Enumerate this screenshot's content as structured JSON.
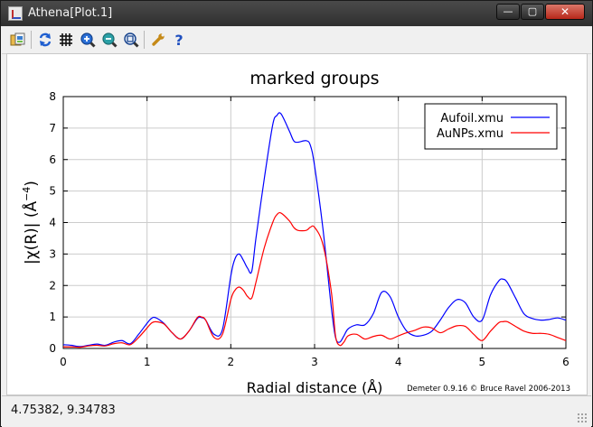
{
  "window": {
    "title": "Athena[Plot.1]",
    "controls": {
      "minimize": "—",
      "maximize": "▢",
      "close": "✕"
    }
  },
  "toolbar": {
    "buttons": [
      {
        "name": "save-image",
        "icon": "save-image-icon"
      },
      {
        "name": "replot",
        "icon": "refresh-icon"
      },
      {
        "name": "grid",
        "icon": "grid-icon"
      },
      {
        "name": "zoom-in",
        "icon": "zoom-in-icon"
      },
      {
        "name": "zoom-out",
        "icon": "zoom-out-icon"
      },
      {
        "name": "zoom-fit",
        "icon": "zoom-fit-icon"
      },
      {
        "name": "settings",
        "icon": "wrench-icon"
      },
      {
        "name": "help",
        "icon": "help-icon"
      }
    ]
  },
  "status": {
    "coordinates": "4.75382,  9.34783"
  },
  "chart_data": {
    "type": "line",
    "title": "marked groups",
    "xlabel": "Radial distance    (Å)",
    "ylabel": "|χ(R)|   (Å",
    "ylabel_sup": "−4",
    "ylabel_close": ")",
    "xlim": [
      0,
      6
    ],
    "ylim": [
      0,
      8
    ],
    "xticks": [
      "0",
      "1",
      "2",
      "3",
      "4",
      "5",
      "6"
    ],
    "yticks": [
      "0",
      "1",
      "2",
      "3",
      "4",
      "5",
      "6",
      "7",
      "8"
    ],
    "grid": true,
    "legend_position": "top-right",
    "credit": "Demeter 0.9.16 © Bruce Ravel 2006-2013",
    "series": [
      {
        "name": "Aufoil.xmu",
        "color": "#0000ff",
        "x": [
          0,
          0.1,
          0.2,
          0.3,
          0.4,
          0.5,
          0.6,
          0.7,
          0.8,
          0.9,
          1.0,
          1.05,
          1.1,
          1.2,
          1.3,
          1.4,
          1.5,
          1.6,
          1.65,
          1.7,
          1.8,
          1.9,
          2.0,
          2.05,
          2.1,
          2.15,
          2.2,
          2.25,
          2.3,
          2.4,
          2.5,
          2.55,
          2.6,
          2.7,
          2.75,
          2.8,
          2.9,
          2.95,
          3.0,
          3.1,
          3.2,
          3.25,
          3.3,
          3.35,
          3.4,
          3.5,
          3.6,
          3.7,
          3.8,
          3.9,
          4.0,
          4.1,
          4.2,
          4.3,
          4.4,
          4.5,
          4.6,
          4.7,
          4.8,
          4.9,
          5.0,
          5.1,
          5.2,
          5.25,
          5.3,
          5.4,
          5.5,
          5.6,
          5.7,
          5.8,
          5.9,
          6.0
        ],
        "y": [
          0.12,
          0.1,
          0.06,
          0.1,
          0.14,
          0.1,
          0.2,
          0.25,
          0.15,
          0.45,
          0.8,
          0.95,
          0.98,
          0.8,
          0.5,
          0.3,
          0.55,
          0.95,
          0.98,
          0.9,
          0.45,
          0.6,
          2.3,
          2.85,
          3.0,
          2.8,
          2.55,
          2.45,
          3.5,
          5.4,
          7.1,
          7.4,
          7.45,
          6.9,
          6.6,
          6.55,
          6.6,
          6.45,
          5.8,
          3.8,
          1.3,
          0.35,
          0.2,
          0.4,
          0.62,
          0.75,
          0.75,
          1.1,
          1.78,
          1.65,
          1.0,
          0.55,
          0.4,
          0.42,
          0.55,
          0.9,
          1.3,
          1.55,
          1.45,
          1.0,
          0.9,
          1.7,
          2.15,
          2.2,
          2.1,
          1.6,
          1.1,
          0.95,
          0.9,
          0.92,
          0.97,
          0.9
        ]
      },
      {
        "name": "AuNPs.xmu",
        "color": "#ff0000",
        "x": [
          0,
          0.1,
          0.2,
          0.3,
          0.4,
          0.5,
          0.6,
          0.7,
          0.8,
          0.9,
          1.0,
          1.05,
          1.1,
          1.2,
          1.3,
          1.4,
          1.5,
          1.6,
          1.65,
          1.7,
          1.8,
          1.9,
          2.0,
          2.05,
          2.1,
          2.15,
          2.2,
          2.25,
          2.3,
          2.4,
          2.5,
          2.55,
          2.6,
          2.7,
          2.75,
          2.8,
          2.9,
          2.95,
          3.0,
          3.1,
          3.2,
          3.25,
          3.3,
          3.35,
          3.4,
          3.5,
          3.6,
          3.7,
          3.8,
          3.9,
          4.0,
          4.1,
          4.2,
          4.3,
          4.4,
          4.5,
          4.6,
          4.7,
          4.8,
          4.9,
          5.0,
          5.1,
          5.2,
          5.25,
          5.3,
          5.4,
          5.5,
          5.6,
          5.7,
          5.8,
          5.9,
          6.0
        ],
        "y": [
          0.05,
          0.05,
          0.04,
          0.08,
          0.1,
          0.08,
          0.15,
          0.18,
          0.12,
          0.35,
          0.65,
          0.8,
          0.85,
          0.78,
          0.5,
          0.3,
          0.55,
          0.98,
          1.0,
          0.9,
          0.35,
          0.45,
          1.55,
          1.85,
          1.95,
          1.85,
          1.65,
          1.6,
          2.1,
          3.2,
          4.0,
          4.25,
          4.3,
          4.05,
          3.85,
          3.75,
          3.75,
          3.85,
          3.85,
          3.3,
          1.8,
          0.4,
          0.1,
          0.2,
          0.4,
          0.45,
          0.3,
          0.38,
          0.42,
          0.3,
          0.4,
          0.5,
          0.58,
          0.68,
          0.65,
          0.5,
          0.62,
          0.72,
          0.7,
          0.45,
          0.25,
          0.55,
          0.82,
          0.85,
          0.85,
          0.7,
          0.55,
          0.48,
          0.48,
          0.45,
          0.35,
          0.25
        ]
      }
    ]
  }
}
